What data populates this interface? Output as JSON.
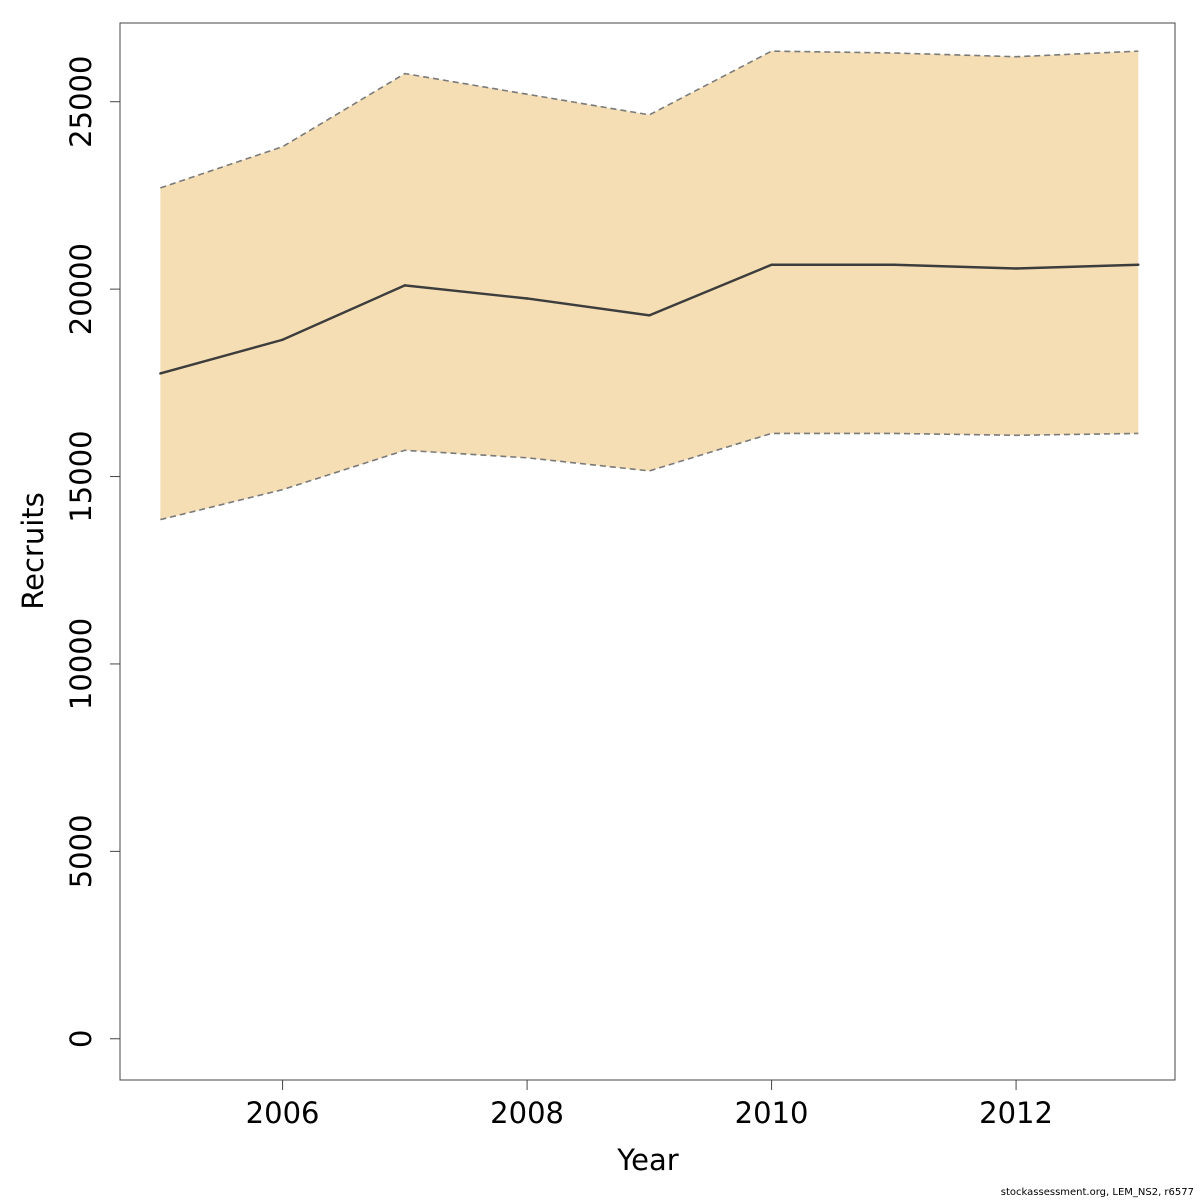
{
  "chart_data": {
    "type": "area",
    "xlabel": "Year",
    "ylabel": "Recruits",
    "xlim": [
      2004.67,
      2013.3
    ],
    "ylim": [
      -1100,
      27100
    ],
    "x_ticks": [
      2006,
      2008,
      2010,
      2012
    ],
    "y_ticks": [
      0,
      5000,
      10000,
      15000,
      20000,
      25000
    ],
    "x": [
      2005,
      2006,
      2007,
      2008,
      2009,
      2010,
      2011,
      2012,
      2013
    ],
    "series": [
      {
        "role": "estimate",
        "values": [
          17750,
          18650,
          20100,
          19750,
          19300,
          20650,
          20650,
          20550,
          20650
        ]
      },
      {
        "role": "upper",
        "values": [
          22700,
          23800,
          25750,
          25200,
          24650,
          26350,
          26300,
          26200,
          26350
        ]
      },
      {
        "role": "lower",
        "values": [
          13850,
          14650,
          15700,
          15500,
          15150,
          16150,
          16150,
          16100,
          16150
        ]
      }
    ],
    "grid": false,
    "colors": {
      "band": "#f5deb3",
      "line": "#3d3d3d",
      "bound": "#7a7a7a",
      "axis": "#444444"
    }
  },
  "footer": "stockassessment.org, LEM_NS2, r6577"
}
